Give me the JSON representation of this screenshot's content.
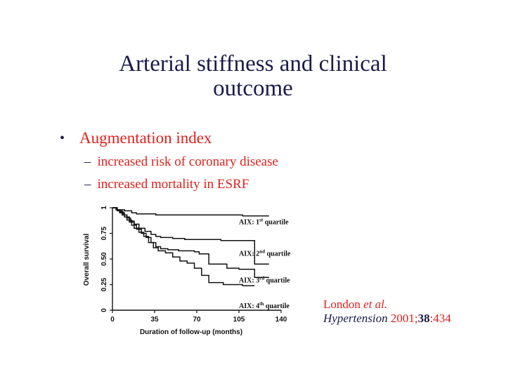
{
  "slide": {
    "title_line1": "Arterial stiffness and clinical",
    "title_line2": "outcome",
    "bullet": "Augmentation index",
    "sub_bullets": [
      "increased risk of coronary disease",
      "increased mortality in ESRF"
    ],
    "citation": {
      "authors": "London",
      "etal": "et al.",
      "journal": "Hypertension",
      "year_pre": "2001;",
      "volume": "38",
      "pages": ":434"
    },
    "colors": {
      "title": "#1a1a4a",
      "bullet_text": "#e0201c",
      "chart_ink": "#111111"
    }
  },
  "chart_data": {
    "type": "line",
    "title": "",
    "xlabel": "Duration of follow-up (months)",
    "ylabel": "Overall survival",
    "xlim": [
      0,
      140
    ],
    "ylim": [
      0,
      1
    ],
    "xticks": [
      0,
      35,
      70,
      105,
      140
    ],
    "yticks": [
      0,
      0.25,
      0.5,
      0.75,
      1
    ],
    "xtick_labels": [
      "0",
      "35",
      "70",
      "105",
      "140"
    ],
    "ytick_labels": [
      "0",
      "0.25",
      "0.50",
      "0.75",
      "1"
    ],
    "grid": false,
    "series": [
      {
        "name": "AIX: 1st quartile",
        "x": [
          0,
          4,
          10,
          16,
          20,
          36,
          108,
          130
        ],
        "y": [
          1.0,
          0.98,
          0.97,
          0.95,
          0.94,
          0.93,
          0.92,
          0.92
        ]
      },
      {
        "name": "AIX: 2nd quartile",
        "x": [
          0,
          3,
          6,
          9,
          12,
          15,
          18,
          22,
          27,
          32,
          36,
          40,
          50,
          60,
          90,
          118,
          130
        ],
        "y": [
          1.0,
          0.98,
          0.96,
          0.93,
          0.9,
          0.87,
          0.84,
          0.8,
          0.77,
          0.74,
          0.72,
          0.71,
          0.7,
          0.69,
          0.68,
          0.45,
          0.45
        ]
      },
      {
        "name": "AIX: 3rd quartile",
        "x": [
          0,
          4,
          8,
          12,
          16,
          20,
          24,
          28,
          32,
          36,
          40,
          46,
          55,
          68,
          72,
          80,
          95,
          105,
          118,
          130
        ],
        "y": [
          1.0,
          0.97,
          0.93,
          0.88,
          0.83,
          0.79,
          0.75,
          0.71,
          0.66,
          0.62,
          0.6,
          0.59,
          0.58,
          0.57,
          0.55,
          0.45,
          0.41,
          0.4,
          0.32,
          0.32
        ]
      },
      {
        "name": "AIX: 4th quartile",
        "x": [
          0,
          3,
          6,
          10,
          14,
          18,
          22,
          26,
          30,
          34,
          38,
          44,
          50,
          56,
          62,
          68,
          74,
          80,
          92,
          108,
          118
        ],
        "y": [
          1.0,
          0.98,
          0.95,
          0.91,
          0.86,
          0.8,
          0.76,
          0.72,
          0.66,
          0.61,
          0.58,
          0.56,
          0.52,
          0.48,
          0.46,
          0.41,
          0.34,
          0.27,
          0.25,
          0.24,
          0.24
        ]
      }
    ],
    "series_labels": [
      {
        "prefix": "AIX: 1",
        "sup": "st",
        "suffix": " quartile"
      },
      {
        "prefix": "AIX: 2",
        "sup": "nd",
        "suffix": " quartile"
      },
      {
        "prefix": "AIX: 3",
        "sup": "rd",
        "suffix": " quartile"
      },
      {
        "prefix": "AIX: 4",
        "sup": "th",
        "suffix": " quartile"
      }
    ]
  }
}
